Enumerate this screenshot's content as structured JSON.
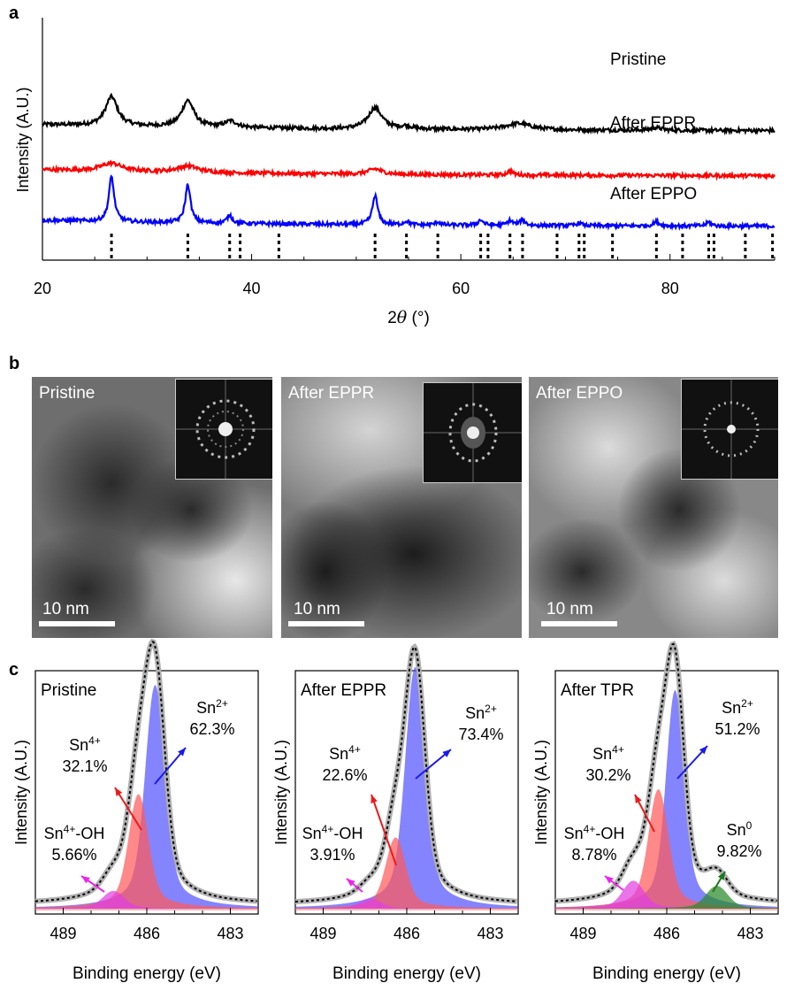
{
  "panel_labels": {
    "a": "a",
    "b": "b",
    "c": "c"
  },
  "chart_data": [
    {
      "type": "line",
      "id": "xrd",
      "xlabel_prefix": "2",
      "xlabel_symbol": "θ",
      "xlabel_suffix": " (°)",
      "ylabel": "Intensity (A.U.)",
      "xlim": [
        20,
        90
      ],
      "xticks": [
        20,
        40,
        60,
        80
      ],
      "series": [
        {
          "name": "Pristine",
          "color": "#000000",
          "offset": 2.0,
          "peaks": [
            [
              26.6,
              0.55,
              0.7
            ],
            [
              33.9,
              0.5,
              0.7
            ],
            [
              38.0,
              0.12,
              0.7
            ],
            [
              51.8,
              0.4,
              0.8
            ],
            [
              54.8,
              0.05,
              0.6
            ],
            [
              65.5,
              0.12,
              1.5
            ],
            [
              78.7,
              0.05,
              0.6
            ]
          ]
        },
        {
          "name": "After EPPR",
          "color": "#ff0000",
          "offset": 1.15,
          "peaks": [
            [
              26.6,
              0.15,
              1.2
            ],
            [
              33.9,
              0.12,
              1.2
            ],
            [
              51.8,
              0.1,
              0.8
            ],
            [
              64.7,
              0.08,
              0.3
            ]
          ]
        },
        {
          "name": "After EPPO",
          "color": "#0000ff",
          "offset": 0.2,
          "peaks": [
            [
              26.6,
              0.85,
              0.3
            ],
            [
              33.9,
              0.72,
              0.3
            ],
            [
              37.9,
              0.15,
              0.3
            ],
            [
              51.8,
              0.55,
              0.3
            ],
            [
              54.8,
              0.07,
              0.3
            ],
            [
              57.8,
              0.06,
              0.3
            ],
            [
              61.9,
              0.1,
              0.3
            ],
            [
              64.7,
              0.09,
              0.3
            ],
            [
              65.9,
              0.1,
              0.3
            ],
            [
              71.3,
              0.05,
              0.3
            ],
            [
              78.7,
              0.08,
              0.3
            ],
            [
              83.7,
              0.07,
              0.3
            ]
          ]
        }
      ],
      "reference_ticks": [
        26.6,
        33.9,
        37.9,
        38.9,
        42.6,
        51.8,
        54.8,
        57.8,
        61.9,
        62.6,
        64.7,
        65.9,
        69.2,
        71.3,
        71.8,
        74.5,
        78.7,
        81.2,
        83.7,
        84.2,
        87.2,
        89.8
      ]
    },
    {
      "type": "area",
      "id": "xps-pristine",
      "title": "Pristine",
      "xlabel": "Binding energy (eV)",
      "ylabel": "Intensity (A.U.)",
      "xlim": [
        490,
        482
      ],
      "xticks": [
        489,
        486,
        483
      ],
      "components": [
        {
          "name": "Sn2+",
          "color": "#5555ff",
          "center": 485.7,
          "height": 0.88,
          "width": 0.55
        },
        {
          "name": "Sn4+",
          "color": "#ff5a5a",
          "center": 486.3,
          "height": 0.45,
          "width": 0.55
        },
        {
          "name": "Sn4+-OH",
          "color": "#e040e0",
          "center": 487.2,
          "height": 0.07,
          "width": 0.6
        }
      ],
      "annotations": [
        {
          "sp": "Sn",
          "sup": "2+",
          "pct": "62.3%"
        },
        {
          "sp": "Sn",
          "sup": "4+",
          "pct": "32.1%"
        },
        {
          "sp": "Sn",
          "sup": "4+",
          "sp2": "-OH",
          "pct": "5.66%"
        }
      ]
    },
    {
      "type": "area",
      "id": "xps-eppr",
      "title": "After EPPR",
      "xlabel": "Binding energy (eV)",
      "ylabel": "Intensity (A.U.)",
      "xlim": [
        490,
        482
      ],
      "xticks": [
        489,
        486,
        483
      ],
      "components": [
        {
          "name": "Sn2+",
          "color": "#5555ff",
          "center": 485.7,
          "height": 0.95,
          "width": 0.55
        },
        {
          "name": "Sn4+",
          "color": "#ff5a5a",
          "center": 486.4,
          "height": 0.28,
          "width": 0.55
        },
        {
          "name": "Sn4+-OH",
          "color": "#e040e0",
          "center": 487.3,
          "height": 0.04,
          "width": 0.6
        }
      ],
      "annotations": [
        {
          "sp": "Sn",
          "sup": "2+",
          "pct": "73.4%"
        },
        {
          "sp": "Sn",
          "sup": "4+",
          "pct": "22.6%"
        },
        {
          "sp": "Sn",
          "sup": "4+",
          "sp2": "-OH",
          "pct": "3.91%"
        }
      ]
    },
    {
      "type": "area",
      "id": "xps-tpr",
      "title": "After TPR",
      "xlabel": "Binding energy (eV)",
      "ylabel": "Intensity (A.U.)",
      "xlim": [
        490,
        482
      ],
      "xticks": [
        489,
        486,
        483
      ],
      "components": [
        {
          "name": "Sn2+",
          "color": "#5555ff",
          "center": 485.7,
          "height": 0.86,
          "width": 0.5
        },
        {
          "name": "Sn4+",
          "color": "#ff5a5a",
          "center": 486.3,
          "height": 0.47,
          "width": 0.55
        },
        {
          "name": "Sn4+-OH",
          "color": "#e040e0",
          "center": 487.2,
          "height": 0.11,
          "width": 0.6
        },
        {
          "name": "Sn0",
          "color": "#2a8a2a",
          "center": 484.2,
          "height": 0.09,
          "width": 0.6
        }
      ],
      "annotations": [
        {
          "sp": "Sn",
          "sup": "2+",
          "pct": "51.2%"
        },
        {
          "sp": "Sn",
          "sup": "4+",
          "pct": "30.2%"
        },
        {
          "sp": "Sn",
          "sup": "4+",
          "sp2": "-OH",
          "pct": "8.78%"
        },
        {
          "sp": "Sn",
          "sup": "0",
          "pct": "9.82%"
        }
      ]
    }
  ],
  "tem_panels": [
    {
      "label": "Pristine",
      "scalebar": "10 nm"
    },
    {
      "label": "After EPPR",
      "scalebar": "10 nm"
    },
    {
      "label": "After EPPO",
      "scalebar": "10 nm"
    }
  ]
}
